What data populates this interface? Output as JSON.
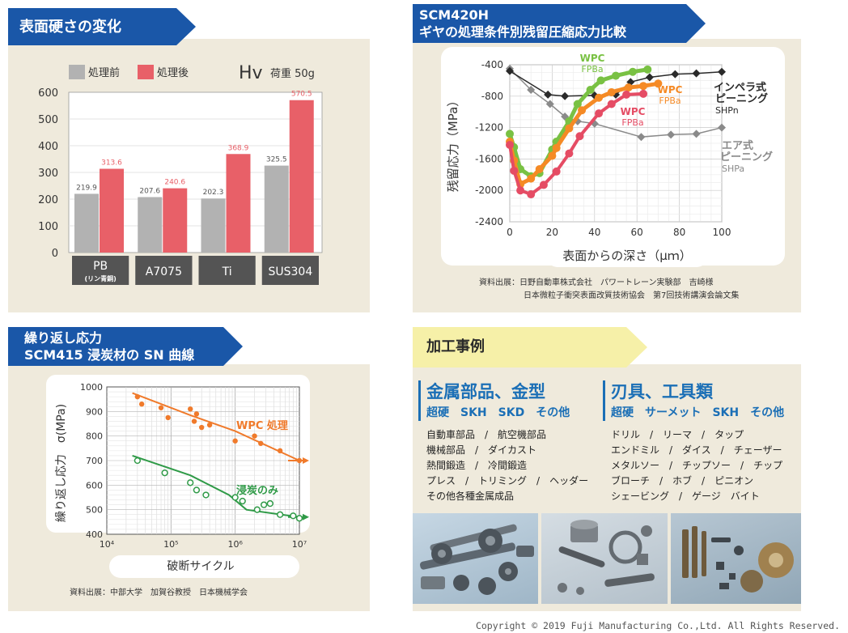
{
  "panels": {
    "hardness": {
      "title": "表面硬さの変化",
      "unit_symbol": "Hv",
      "load": "荷重 50g"
    },
    "residual": {
      "title_line1": "SCM420H",
      "title_line2": "ギヤの処理条件別残留圧縮応力比較",
      "source_line1": "資料出展：日野自動車株式会社　パワートレーン実験部　吉崎様",
      "source_line2": "日本微粒子衝突表面改質技術協会　第7回技術講演会論文集"
    },
    "sn": {
      "title_line1": "繰り返し応力",
      "title_line2": "SCM415 浸炭材の SN 曲線",
      "source": "資料出展：中部大学　加賀谷教授　日本機械学会"
    },
    "cases": {
      "title": "加工事例",
      "left_head": "金属部品、金型",
      "left_sub": "超硬　SKH　SKD　その他",
      "left_items": [
        "自動車部品　/　航空機部品",
        "機械部品　/　ダイカスト",
        "熱間鍛造　/　冷間鍛造",
        "プレス　/　トリミング　/　ヘッダー",
        "その他各種金属成品"
      ],
      "right_head": "刃具、工具類",
      "right_sub": "超硬　サーメット　SKH　その他",
      "right_items": [
        "ドリル　/　リーマ　/　タップ",
        "エンドミル　/　ダイス　/　チェーザー",
        "メタルソー　/　チップソー　/　チップ",
        "ブローチ　/　ホブ　/　ピニオン",
        "シェービング　/　ゲージ　バイト"
      ]
    }
  },
  "copyright": "Copyright © 2019 Fuji Manufacturing Co.,Ltd. All Rights Reserved.",
  "colors": {
    "navy": "#1a4d9c",
    "tab_blue": "#1a57a8",
    "grey_bar": "#b2b2b2",
    "red_bar": "#e86068",
    "green": "#79c143",
    "orange": "#f58a25",
    "pink": "#e54c64",
    "dark": "#2a2a2a",
    "mid_grey": "#8a8a8a",
    "sn_orange": "#f07a2b",
    "sn_green": "#2f9a47"
  },
  "chart_data": [
    {
      "type": "bar",
      "ylim": [
        0,
        600
      ],
      "yticks": [
        0,
        100,
        200,
        300,
        400,
        500,
        600
      ],
      "categories": [
        "PB",
        "A7075",
        "Ti",
        "SUS304"
      ],
      "category_sub": [
        "(リン青銅)",
        "",
        "",
        ""
      ],
      "series": [
        {
          "name": "処理前",
          "values": [
            219.9,
            207.6,
            202.3,
            325.5
          ],
          "labels": [
            "219.9",
            "207.6",
            "202.3",
            "325.5"
          ]
        },
        {
          "name": "処理後",
          "values": [
            313.6,
            240.6,
            368.9,
            570.5
          ],
          "labels": [
            "313.6",
            "240.6",
            "368.9",
            "570.5"
          ]
        }
      ]
    },
    {
      "type": "line",
      "xlabel": "表面からの深さ（μｍ）",
      "ylabel": "残留応力（MPa）",
      "xlim": [
        0,
        100
      ],
      "ylim": [
        -2400,
        -400
      ],
      "xticks": [
        0,
        20,
        40,
        60,
        80,
        100
      ],
      "yticks": [
        -400,
        -800,
        -1200,
        -1600,
        -2000,
        -2400
      ],
      "series": [
        {
          "name": "WPC FPBa (green)",
          "label1": "WPC",
          "label2": "FPBa",
          "x": [
            0,
            2,
            5,
            10,
            14,
            20,
            22,
            28,
            32,
            38,
            43,
            50,
            58,
            65
          ],
          "y": [
            -1280,
            -1450,
            -1730,
            -1820,
            -1780,
            -1480,
            -1380,
            -1120,
            -900,
            -720,
            -600,
            -540,
            -490,
            -460
          ]
        },
        {
          "name": "WPC FPBa (orange)",
          "label1": "WPC",
          "label2": "FPBa",
          "x": [
            0,
            2,
            5,
            10,
            14,
            20,
            22,
            28,
            34,
            42,
            48,
            56,
            63,
            70
          ],
          "y": [
            -1380,
            -1620,
            -1920,
            -1850,
            -1730,
            -1560,
            -1460,
            -1210,
            -980,
            -820,
            -750,
            -690,
            -670,
            -640
          ]
        },
        {
          "name": "WPC FPBa (pink)",
          "label1": "WPC",
          "label2": "FPBa",
          "x": [
            0,
            2,
            5,
            10,
            16,
            22,
            28,
            33,
            42,
            48,
            55,
            63
          ],
          "y": [
            -1420,
            -1750,
            -2000,
            -2050,
            -1930,
            -1760,
            -1530,
            -1310,
            -1020,
            -900,
            -780,
            -770
          ]
        },
        {
          "name": "インペラ式ピーニング SHPn",
          "label1": "インペラ式",
          "label2": "ピーニング",
          "label3": "SHPn",
          "x": [
            0,
            18,
            26,
            40,
            50,
            57,
            66,
            78,
            88,
            100
          ],
          "y": [
            -480,
            -780,
            -800,
            -790,
            -780,
            -620,
            -560,
            -520,
            -510,
            -490
          ]
        },
        {
          "name": "エア式ピーニング SHPa",
          "label1": "エア式",
          "label2": "ピーニング",
          "label3": "SHPa",
          "x": [
            0,
            10,
            19,
            26,
            32,
            40,
            62,
            76,
            88,
            100
          ],
          "y": [
            -450,
            -720,
            -900,
            -1060,
            -1120,
            -1150,
            -1320,
            -1290,
            -1280,
            -1200
          ]
        }
      ]
    },
    {
      "type": "scatter",
      "xlabel": "破断サイクル",
      "ylabel": "繰り返し応力　σ(MPa)",
      "xscale": "log",
      "xlim": [
        10000,
        10000000
      ],
      "ylim": [
        400,
        1000
      ],
      "yticks": [
        400,
        500,
        600,
        700,
        800,
        900,
        1000
      ],
      "xticks": [
        "10⁴",
        "10⁵",
        "10⁶",
        "10⁷"
      ],
      "series": [
        {
          "name": "WPC 処理",
          "marker": "filled",
          "x": [
            30000,
            35000,
            70000,
            90000,
            200000,
            230000,
            250000,
            300000,
            400000,
            1000000,
            2000000,
            2500000,
            5000000,
            10000000
          ],
          "y": [
            960,
            930,
            915,
            875,
            910,
            860,
            890,
            835,
            845,
            780,
            800,
            770,
            740,
            700
          ],
          "trend_x": [
            25000,
            200000,
            1000000,
            10000000
          ],
          "trend_y": [
            975,
            885,
            820,
            700
          ]
        },
        {
          "name": "浸炭のみ",
          "marker": "hollow",
          "x": [
            30000,
            80000,
            200000,
            250000,
            350000,
            1000000,
            1300000,
            2200000,
            2800000,
            3500000,
            5000000,
            8000000,
            10000000
          ],
          "y": [
            700,
            650,
            610,
            580,
            560,
            550,
            535,
            500,
            520,
            525,
            480,
            475,
            465
          ],
          "trend_x": [
            25000,
            200000,
            800000,
            1500000,
            10000000
          ],
          "trend_y": [
            720,
            640,
            560,
            500,
            470
          ]
        }
      ]
    }
  ]
}
